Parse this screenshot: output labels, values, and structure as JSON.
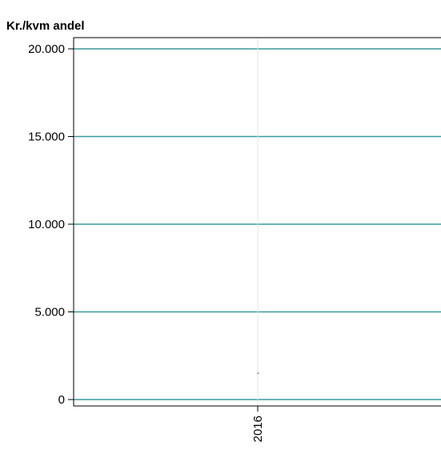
{
  "chart_data": {
    "type": "line",
    "ylabel": "Kr./kvm andel",
    "xlabel": "",
    "title": "",
    "x": [
      "2016"
    ],
    "y_ticks": [
      {
        "value": 0,
        "label": "0"
      },
      {
        "value": 5000,
        "label": "5.000"
      },
      {
        "value": 10000,
        "label": "10.000"
      },
      {
        "value": 15000,
        "label": "15.000"
      },
      {
        "value": 20000,
        "label": "20.000"
      }
    ],
    "ylim": [
      0,
      20000
    ],
    "series": [
      {
        "values": [
          1500
        ]
      }
    ],
    "grid": "horizontal",
    "colors": {
      "gridline": "#3a9a9a",
      "vgrid": "#e6e6e6",
      "frame": "#000000",
      "series": "#000000"
    }
  }
}
